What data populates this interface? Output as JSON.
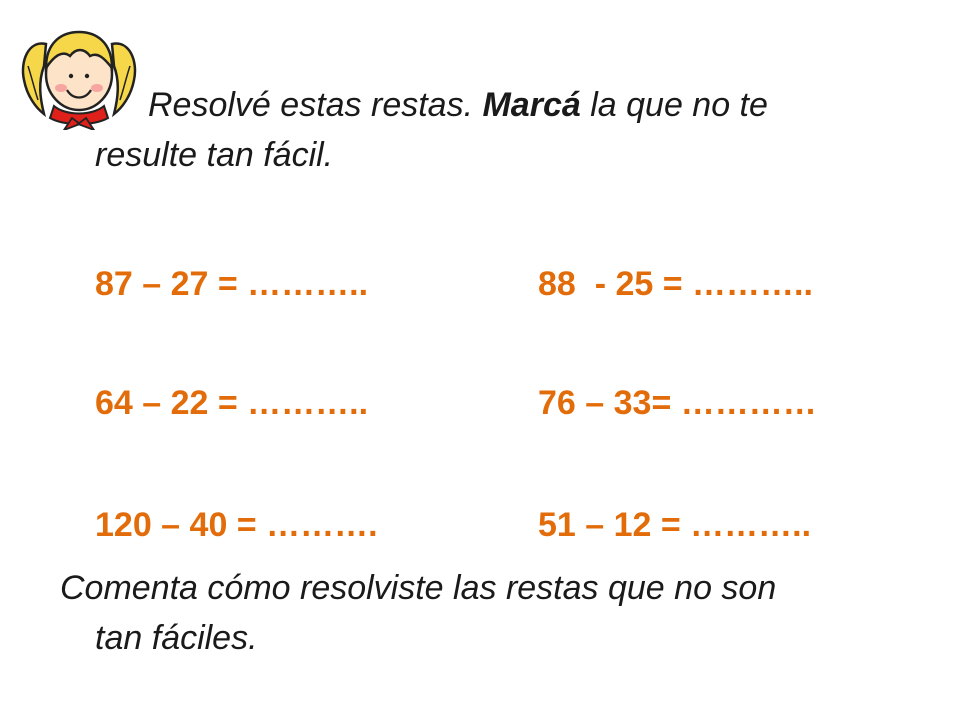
{
  "instruction": {
    "part1": "Resolvé estas restas. ",
    "bold": "Marcá",
    "part2": " la que no te",
    "line2": "resulte tan fácil."
  },
  "equations": {
    "left": [
      "87 – 27 = ………..",
      "64 – 22 = ………..",
      "120 – 40 = ………."
    ],
    "right": [
      "88  - 25 = ………..",
      "76 – 33= …………",
      "51 – 12 = ……….."
    ]
  },
  "comment": {
    "line1": "Comenta cómo resolviste las restas que no son",
    "line2": "tan fáciles."
  },
  "colors": {
    "equation": "#e36c0a",
    "text": "#1a1a1a",
    "hair": "#f7d74a",
    "scarf": "#e0201b"
  },
  "icons": {
    "girl": "girl-face-clipart"
  }
}
